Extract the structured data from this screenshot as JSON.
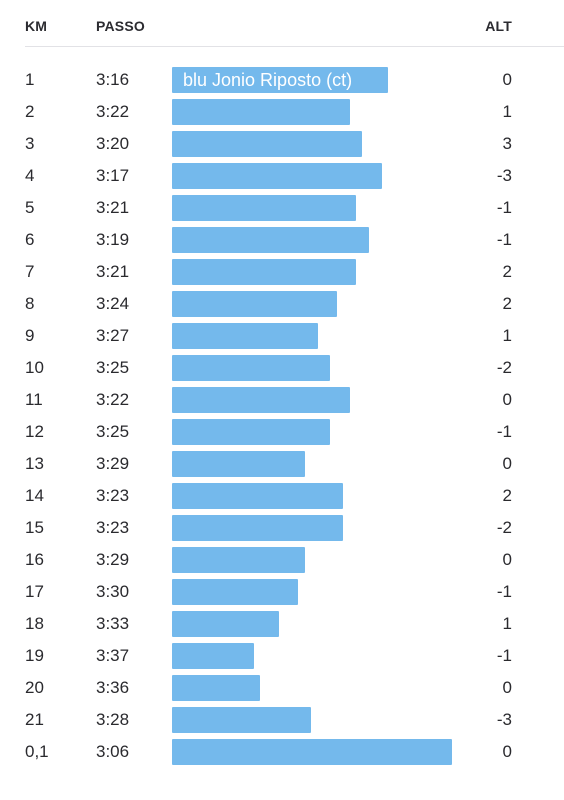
{
  "header": {
    "km": "KM",
    "pace": "PASSO",
    "alt": "ALT"
  },
  "colors": {
    "bar": "#74b9ec",
    "divider": "#e2e2e6"
  },
  "chart_data": {
    "type": "bar",
    "orientation": "horizontal",
    "annotation": "blu Jonio Riposto (ct)",
    "rows": [
      {
        "km": "1",
        "pace": "3:16",
        "alt": "0"
      },
      {
        "km": "2",
        "pace": "3:22",
        "alt": "1"
      },
      {
        "km": "3",
        "pace": "3:20",
        "alt": "3"
      },
      {
        "km": "4",
        "pace": "3:17",
        "alt": "-3"
      },
      {
        "km": "5",
        "pace": "3:21",
        "alt": "-1"
      },
      {
        "km": "6",
        "pace": "3:19",
        "alt": "-1"
      },
      {
        "km": "7",
        "pace": "3:21",
        "alt": "2"
      },
      {
        "km": "8",
        "pace": "3:24",
        "alt": "2"
      },
      {
        "km": "9",
        "pace": "3:27",
        "alt": "1"
      },
      {
        "km": "10",
        "pace": "3:25",
        "alt": "-2"
      },
      {
        "km": "11",
        "pace": "3:22",
        "alt": "0"
      },
      {
        "km": "12",
        "pace": "3:25",
        "alt": "-1"
      },
      {
        "km": "13",
        "pace": "3:29",
        "alt": "0"
      },
      {
        "km": "14",
        "pace": "3:23",
        "alt": "2"
      },
      {
        "km": "15",
        "pace": "3:23",
        "alt": "-2"
      },
      {
        "km": "16",
        "pace": "3:29",
        "alt": "0"
      },
      {
        "km": "17",
        "pace": "3:30",
        "alt": "-1"
      },
      {
        "km": "18",
        "pace": "3:33",
        "alt": "1"
      },
      {
        "km": "19",
        "pace": "3:37",
        "alt": "-1"
      },
      {
        "km": "20",
        "pace": "3:36",
        "alt": "0"
      },
      {
        "km": "21",
        "pace": "3:28",
        "alt": "-3"
      },
      {
        "km": "0,1",
        "pace": "3:06",
        "alt": "0"
      }
    ]
  }
}
